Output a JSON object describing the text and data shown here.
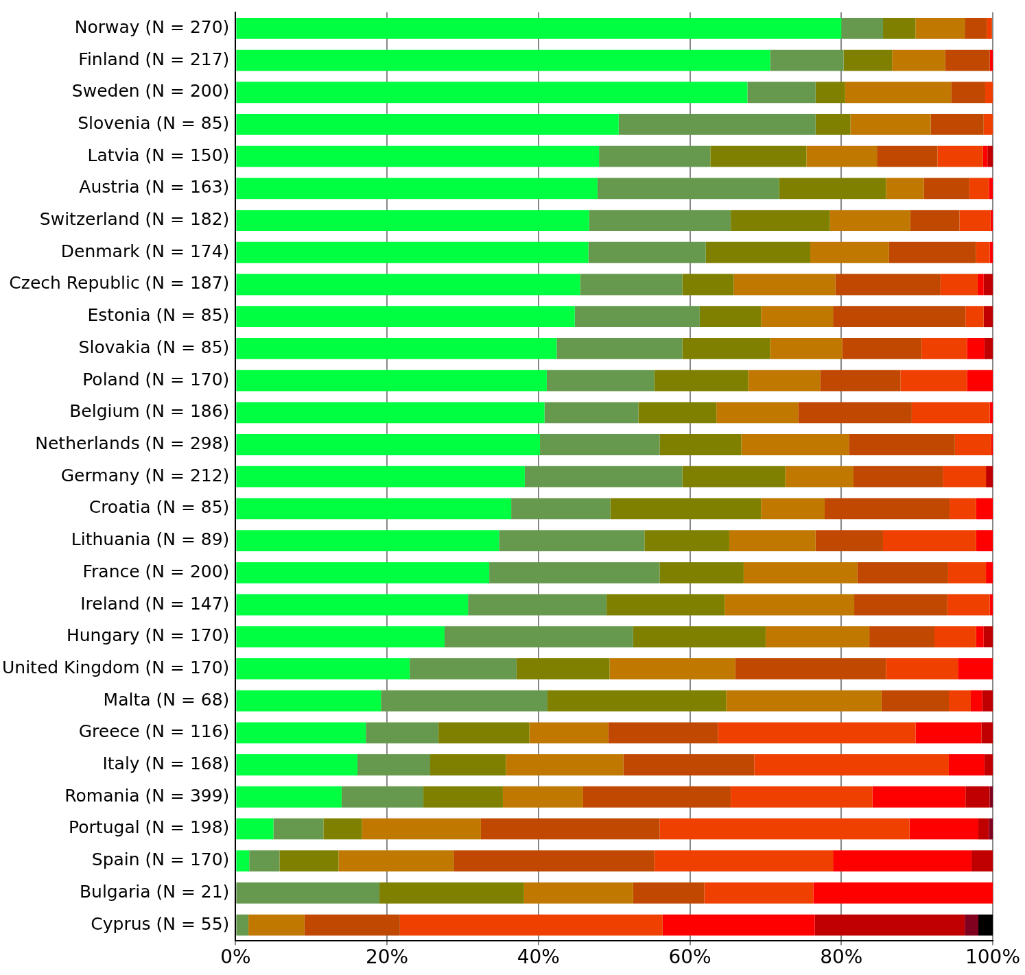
{
  "chart_data": {
    "type": "bar",
    "orientation": "horizontal",
    "stacked": true,
    "grid": "x",
    "legend": false,
    "categories": [
      "Norway (N = 270)",
      "Finland (N = 217)",
      "Sweden (N = 200)",
      "Slovenia (N = 85)",
      "Latvia (N = 150)",
      "Austria (N = 163)",
      "Switzerland (N = 182)",
      "Denmark (N = 174)",
      "Czech Republic (N = 187)",
      "Estonia (N = 85)",
      "Slovakia (N = 85)",
      "Poland (N = 170)",
      "Belgium (N = 186)",
      "Netherlands (N = 298)",
      "Germany (N = 212)",
      "Croatia (N = 85)",
      "Lithuania (N = 89)",
      "France (N = 200)",
      "Ireland (N = 147)",
      "Hungary (N = 170)",
      "United Kingdom (N = 170)",
      "Malta (N = 68)",
      "Greece (N = 116)",
      "Italy (N = 168)",
      "Romania (N = 399)",
      "Portugal (N = 198)",
      "Spain (N = 170)",
      "Bulgaria (N = 21)",
      "Cyprus (N = 55)"
    ],
    "xlim": [
      0,
      100
    ],
    "xticks": [
      {
        "value": 0,
        "label": "0%"
      },
      {
        "value": 20,
        "label": "20%"
      },
      {
        "value": 40,
        "label": "40%"
      },
      {
        "value": 60,
        "label": "60%"
      },
      {
        "value": 80,
        "label": "80%"
      },
      {
        "value": 100,
        "label": "100%"
      }
    ],
    "series": [
      {
        "color": "#00ff40",
        "values": [
          80,
          70.6,
          67.6,
          50.6,
          48,
          47.8,
          46.7,
          46.6,
          45.5,
          44.8,
          42.4,
          41.1,
          40.8,
          40.2,
          38.2,
          36.4,
          34.8,
          33.5,
          30.7,
          27.6,
          23,
          19.2,
          17.2,
          16.1,
          14,
          5,
          1.8,
          0,
          0
        ]
      },
      {
        "color": "#66994d",
        "values": [
          5.5,
          9.7,
          9,
          26,
          14.7,
          24,
          18.7,
          15.5,
          13.5,
          16.5,
          16.6,
          14.2,
          12.4,
          15.8,
          20.8,
          13.1,
          19.2,
          22.5,
          18.3,
          24.9,
          14.1,
          22,
          9.6,
          9.6,
          10.8,
          6.6,
          4,
          19,
          1.7
        ]
      },
      {
        "color": "#808000",
        "values": [
          4.3,
          6.4,
          3.9,
          4.6,
          12.7,
          14.1,
          13.1,
          13.8,
          6.8,
          8.1,
          11.6,
          12.4,
          10.3,
          10.8,
          13.6,
          19.9,
          11.2,
          11.1,
          15.6,
          17.5,
          12.3,
          23.6,
          12,
          10,
          10.5,
          5.1,
          7.8,
          19.1,
          0
        ]
      },
      {
        "color": "#c07800",
        "values": [
          6.5,
          7,
          14,
          10.6,
          9.3,
          5,
          10.6,
          10.4,
          13.4,
          9.5,
          9.5,
          9.5,
          10.8,
          14.2,
          9,
          8.4,
          11.4,
          15,
          17.1,
          13.7,
          16.6,
          20.5,
          10.4,
          15.5,
          10.6,
          15.7,
          15.2,
          14.4,
          7.4
        ]
      },
      {
        "color": "#c04800",
        "values": [
          2.9,
          5.9,
          4.5,
          7,
          8,
          6,
          6.5,
          11.5,
          13.9,
          17.5,
          10.5,
          10.6,
          15,
          14,
          11.8,
          16.5,
          8.9,
          12,
          12.3,
          8.6,
          19.9,
          8.9,
          14.5,
          17.3,
          19.5,
          23.6,
          26.5,
          9.4,
          12.6
        ]
      },
      {
        "color": "#f04000",
        "values": [
          0.7,
          0,
          1,
          1.2,
          6,
          2.6,
          4.1,
          1.8,
          4.9,
          2.4,
          6,
          8.8,
          10.3,
          4.8,
          5.7,
          3.5,
          12.3,
          5,
          5.6,
          5.5,
          9.5,
          2.9,
          26.1,
          25.7,
          18.7,
          33,
          23.6,
          14.4,
          34.7
        ]
      },
      {
        "color": "#ff0000",
        "values": [
          0,
          0.4,
          0,
          0,
          0.6,
          0.5,
          0.3,
          0.4,
          0.8,
          0,
          2.3,
          3.4,
          0.4,
          0.2,
          0,
          2.2,
          2.2,
          0.9,
          0.4,
          1,
          4.6,
          1.5,
          8.7,
          4.7,
          12.3,
          9.1,
          18.3,
          23.7,
          20.1
        ]
      },
      {
        "color": "#c00000",
        "values": [
          0,
          0,
          0,
          0,
          0.7,
          0,
          0,
          0,
          1.2,
          1.2,
          1.1,
          0,
          0,
          0,
          0.9,
          0,
          0,
          0,
          0,
          1.2,
          0,
          1.4,
          1.5,
          1.1,
          3.2,
          1.4,
          2.8,
          0,
          19.8
        ]
      },
      {
        "color": "#800020",
        "values": [
          0,
          0,
          0,
          0,
          0,
          0,
          0,
          0,
          0,
          0,
          0,
          0,
          0,
          0,
          0,
          0,
          0,
          0,
          0,
          0,
          0,
          0,
          0,
          0,
          0.4,
          0.5,
          0,
          0,
          1.8
        ]
      },
      {
        "color": "#000000",
        "values": [
          0,
          0,
          0,
          0,
          0,
          0,
          0,
          0,
          0,
          0,
          0,
          0,
          0,
          0,
          0,
          0,
          0,
          0,
          0,
          0,
          0,
          0,
          0,
          0,
          0,
          0,
          0,
          0,
          1.9
        ]
      }
    ]
  }
}
